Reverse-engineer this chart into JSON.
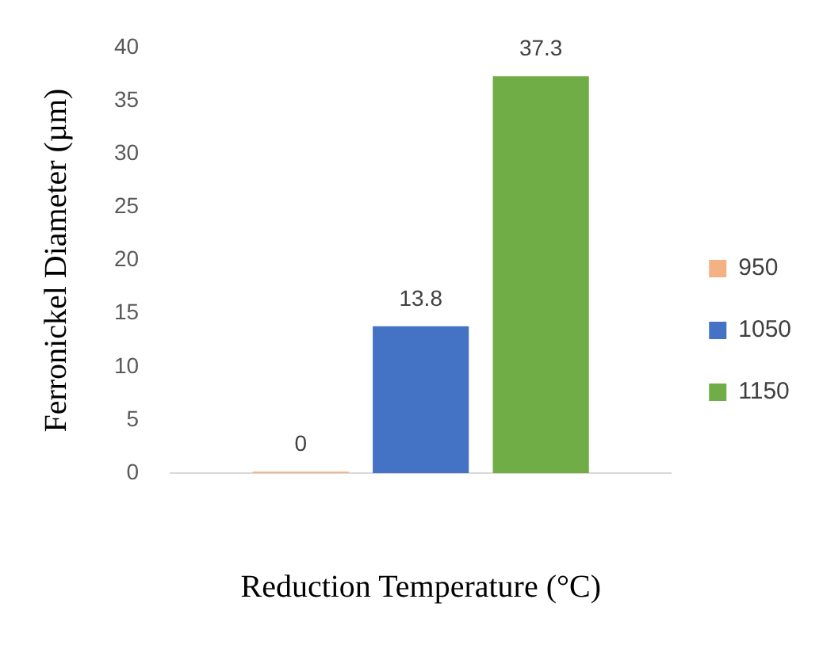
{
  "chart_data": {
    "type": "bar",
    "xlabel": "Reduction Temperature (°C)",
    "ylabel": "Ferronickel Diameter (µm)",
    "categories": [
      null
    ],
    "series": [
      {
        "name": "950",
        "color": "#f4b183",
        "values": [
          0
        ]
      },
      {
        "name": "1050",
        "color": "#4472c4",
        "values": [
          13.8
        ]
      },
      {
        "name": "1150",
        "color": "#70ad47",
        "values": [
          37.3
        ]
      }
    ],
    "ylim": [
      0,
      40
    ],
    "yticks": [
      0,
      5,
      10,
      15,
      20,
      25,
      30,
      35,
      40
    ],
    "grid": false,
    "legend": "right",
    "data_labels": true
  }
}
